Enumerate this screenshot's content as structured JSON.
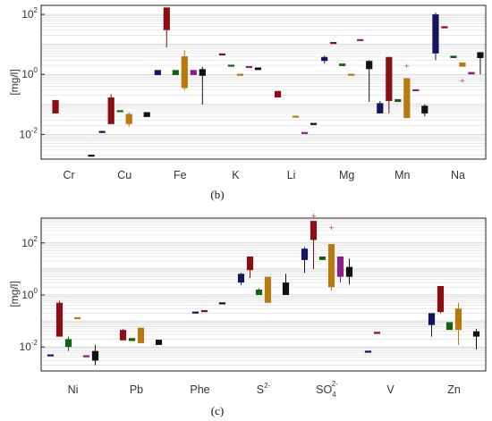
{
  "chart_data": [
    {
      "type": "box",
      "panel_label": "(b)",
      "ylabel": "[mg/l]",
      "yscale": "log",
      "ylim": [
        0.0015,
        200
      ],
      "yticks": [
        {
          "v": 0.01,
          "base": "10",
          "exp": "-2"
        },
        {
          "v": 1,
          "base": "10",
          "exp": "0"
        },
        {
          "v": 100,
          "base": "10",
          "exp": "2"
        }
      ],
      "grid": true,
      "categories": [
        {
          "label": "Cr",
          "sub": "",
          "sup": ""
        },
        {
          "label": "Cu",
          "sub": "",
          "sup": ""
        },
        {
          "label": "Fe",
          "sub": "",
          "sup": ""
        },
        {
          "label": "K",
          "sub": "",
          "sup": ""
        },
        {
          "label": "Li",
          "sub": "",
          "sup": ""
        },
        {
          "label": "Mg",
          "sub": "",
          "sup": ""
        },
        {
          "label": "Mn",
          "sub": "",
          "sup": ""
        },
        {
          "label": "Na",
          "sub": "",
          "sup": ""
        }
      ],
      "boxes": [
        {
          "cat": 0,
          "slot": 1,
          "color": "#8b0f12",
          "q1": 0.05,
          "q3": 0.14,
          "wlo": 0.05,
          "whi": 0.14
        },
        {
          "cat": 0,
          "slot": 5,
          "color": "#111111",
          "q1": 0.0019,
          "q3": 0.0021,
          "wlo": 0.0019,
          "whi": 0.0021
        },
        {
          "cat": 1,
          "slot": 0,
          "color": "#14145f",
          "q1": 0.012,
          "q3": 0.013,
          "wlo": 0.012,
          "whi": 0.013
        },
        {
          "cat": 1,
          "slot": 1,
          "color": "#8b0f12",
          "q1": 0.022,
          "q3": 0.17,
          "wlo": 0.022,
          "whi": 0.22
        },
        {
          "cat": 1,
          "slot": 2,
          "color": "#136213",
          "q1": 0.058,
          "q3": 0.064,
          "wlo": 0.058,
          "whi": 0.064
        },
        {
          "cat": 1,
          "slot": 3,
          "color": "#b8790f",
          "q1": 0.022,
          "q3": 0.048,
          "wlo": 0.018,
          "whi": 0.055
        },
        {
          "cat": 1,
          "slot": 5,
          "color": "#111111",
          "q1": 0.038,
          "q3": 0.055,
          "wlo": 0.038,
          "whi": 0.055
        },
        {
          "cat": 2,
          "slot": 0,
          "color": "#14145f",
          "q1": 0.95,
          "q3": 1.4,
          "wlo": 0.95,
          "whi": 1.4
        },
        {
          "cat": 2,
          "slot": 1,
          "color": "#8b0f12",
          "q1": 30,
          "q3": 170,
          "wlo": 8,
          "whi": 170
        },
        {
          "cat": 2,
          "slot": 2,
          "color": "#136213",
          "q1": 0.95,
          "q3": 1.4,
          "wlo": 0.95,
          "whi": 1.4
        },
        {
          "cat": 2,
          "slot": 3,
          "color": "#b8790f",
          "q1": 0.35,
          "q3": 4.0,
          "wlo": 0.3,
          "whi": 6.5
        },
        {
          "cat": 2,
          "slot": 4,
          "color": "#8a1f8a",
          "q1": 0.95,
          "q3": 1.4,
          "wlo": 0.95,
          "whi": 1.4
        },
        {
          "cat": 2,
          "slot": 5,
          "color": "#111111",
          "q1": 0.9,
          "q3": 1.5,
          "wlo": 0.1,
          "whi": 1.8
        },
        {
          "cat": 3,
          "slot": 1,
          "color": "#8b0f12",
          "q1": 4.5,
          "q3": 5.0,
          "wlo": 4.5,
          "whi": 5.0
        },
        {
          "cat": 3,
          "slot": 2,
          "color": "#136213",
          "q1": 1.9,
          "q3": 2.1,
          "wlo": 1.9,
          "whi": 2.1
        },
        {
          "cat": 3,
          "slot": 3,
          "color": "#b8790f",
          "q1": 0.95,
          "q3": 1.05,
          "wlo": 0.95,
          "whi": 1.05
        },
        {
          "cat": 3,
          "slot": 4,
          "color": "#8a1f8a",
          "q1": 1.7,
          "q3": 1.9,
          "wlo": 1.7,
          "whi": 1.9
        },
        {
          "cat": 3,
          "slot": 5,
          "color": "#111111",
          "q1": 1.4,
          "q3": 1.7,
          "wlo": 1.4,
          "whi": 1.7
        },
        {
          "cat": 4,
          "slot": 1,
          "color": "#8b0f12",
          "q1": 0.17,
          "q3": 0.28,
          "wlo": 0.17,
          "whi": 0.28
        },
        {
          "cat": 4,
          "slot": 3,
          "color": "#b8790f",
          "q1": 0.039,
          "q3": 0.042,
          "wlo": 0.039,
          "whi": 0.042
        },
        {
          "cat": 4,
          "slot": 4,
          "color": "#8a1f8a",
          "q1": 0.011,
          "q3": 0.012,
          "wlo": 0.011,
          "whi": 0.012
        },
        {
          "cat": 4,
          "slot": 5,
          "color": "#111111",
          "q1": 0.022,
          "q3": 0.024,
          "wlo": 0.022,
          "whi": 0.024
        },
        {
          "cat": 5,
          "slot": 0,
          "color": "#14145f",
          "q1": 2.8,
          "q3": 3.8,
          "wlo": 2.3,
          "whi": 4.2
        },
        {
          "cat": 5,
          "slot": 1,
          "color": "#8b0f12",
          "q1": 11,
          "q3": 12,
          "wlo": 11,
          "whi": 12
        },
        {
          "cat": 5,
          "slot": 2,
          "color": "#136213",
          "q1": 1.9,
          "q3": 2.3,
          "wlo": 1.9,
          "whi": 2.3
        },
        {
          "cat": 5,
          "slot": 3,
          "color": "#b8790f",
          "q1": 0.95,
          "q3": 1.05,
          "wlo": 0.95,
          "whi": 1.05
        },
        {
          "cat": 5,
          "slot": 4,
          "color": "#8a1f8a",
          "q1": 13,
          "q3": 15,
          "wlo": 13,
          "whi": 15
        },
        {
          "cat": 5,
          "slot": 5,
          "color": "#111111",
          "q1": 1.5,
          "q3": 2.8,
          "wlo": 0.12,
          "whi": 3.0
        },
        {
          "cat": 6,
          "slot": 0,
          "color": "#14145f",
          "q1": 0.05,
          "q3": 0.11,
          "wlo": 0.05,
          "whi": 0.13
        },
        {
          "cat": 6,
          "slot": 1,
          "color": "#8b0f12",
          "q1": 0.13,
          "q3": 3.8,
          "wlo": 0.05,
          "whi": 3.8
        },
        {
          "cat": 6,
          "slot": 2,
          "color": "#136213",
          "q1": 0.12,
          "q3": 0.15,
          "wlo": 0.12,
          "whi": 0.15
        },
        {
          "cat": 6,
          "slot": 3,
          "color": "#b8790f",
          "q1": 0.035,
          "q3": 0.75,
          "wlo": 0.035,
          "whi": 0.75,
          "out": [
            1.9
          ]
        },
        {
          "cat": 6,
          "slot": 4,
          "color": "#8a1f8a",
          "q1": 0.28,
          "q3": 0.32,
          "wlo": 0.28,
          "whi": 0.32
        },
        {
          "cat": 6,
          "slot": 5,
          "color": "#111111",
          "q1": 0.05,
          "q3": 0.09,
          "wlo": 0.04,
          "whi": 0.1
        },
        {
          "cat": 7,
          "slot": 0,
          "color": "#14145f",
          "q1": 5,
          "q3": 100,
          "wlo": 3,
          "whi": 115
        },
        {
          "cat": 7,
          "slot": 1,
          "color": "#8b0f12",
          "q1": 36,
          "q3": 40,
          "wlo": 36,
          "whi": 40
        },
        {
          "cat": 7,
          "slot": 2,
          "color": "#136213",
          "q1": 3.5,
          "q3": 4.2,
          "wlo": 3.5,
          "whi": 4.2
        },
        {
          "cat": 7,
          "slot": 3,
          "color": "#b8790f",
          "q1": 1.8,
          "q3": 2.5,
          "wlo": 1.8,
          "whi": 2.5,
          "out": [
            0.6
          ]
        },
        {
          "cat": 7,
          "slot": 4,
          "color": "#8a1f8a",
          "q1": 1.0,
          "q3": 1.2,
          "wlo": 1.0,
          "whi": 1.2
        },
        {
          "cat": 7,
          "slot": 5,
          "color": "#111111",
          "q1": 3.5,
          "q3": 5.5,
          "wlo": 1.0,
          "whi": 5.5
        }
      ]
    },
    {
      "type": "box",
      "panel_label": "(c)",
      "ylabel": "[mg/l]",
      "yscale": "log",
      "ylim": [
        0.0012,
        900
      ],
      "yticks": [
        {
          "v": 0.01,
          "base": "10",
          "exp": "-2"
        },
        {
          "v": 1,
          "base": "10",
          "exp": "0"
        },
        {
          "v": 100,
          "base": "10",
          "exp": "2"
        }
      ],
      "grid": true,
      "categories": [
        {
          "label": "Ni",
          "sub": "",
          "sup": ""
        },
        {
          "label": "Pb",
          "sub": "",
          "sup": ""
        },
        {
          "label": "Phe",
          "sub": "",
          "sup": ""
        },
        {
          "label": "S",
          "sub": "",
          "sup": "2-"
        },
        {
          "label": "SO",
          "sub": "4",
          "sup": "2-"
        },
        {
          "label": "V",
          "sub": "",
          "sup": ""
        },
        {
          "label": "Zn",
          "sub": "",
          "sup": ""
        }
      ],
      "boxes": [
        {
          "cat": 0,
          "slot": 0,
          "color": "#14145f",
          "q1": 0.0047,
          "q3": 0.0052,
          "wlo": 0.0047,
          "whi": 0.0052
        },
        {
          "cat": 0,
          "slot": 1,
          "color": "#8b0f12",
          "q1": 0.025,
          "q3": 0.5,
          "wlo": 0.025,
          "whi": 0.6
        },
        {
          "cat": 0,
          "slot": 2,
          "color": "#136213",
          "q1": 0.01,
          "q3": 0.02,
          "wlo": 0.007,
          "whi": 0.025
        },
        {
          "cat": 0,
          "slot": 3,
          "color": "#b8790f",
          "q1": 0.12,
          "q3": 0.14,
          "wlo": 0.12,
          "whi": 0.14
        },
        {
          "cat": 0,
          "slot": 4,
          "color": "#8a1f8a",
          "q1": 0.0043,
          "q3": 0.0048,
          "wlo": 0.0043,
          "whi": 0.0048
        },
        {
          "cat": 0,
          "slot": 5,
          "color": "#111111",
          "q1": 0.003,
          "q3": 0.007,
          "wlo": 0.002,
          "whi": 0.012
        },
        {
          "cat": 1,
          "slot": 1,
          "color": "#8b0f12",
          "q1": 0.018,
          "q3": 0.045,
          "wlo": 0.018,
          "whi": 0.05
        },
        {
          "cat": 1,
          "slot": 2,
          "color": "#136213",
          "q1": 0.017,
          "q3": 0.022,
          "wlo": 0.017,
          "whi": 0.022
        },
        {
          "cat": 1,
          "slot": 3,
          "color": "#b8790f",
          "q1": 0.014,
          "q3": 0.055,
          "wlo": 0.014,
          "whi": 0.055
        },
        {
          "cat": 1,
          "slot": 5,
          "color": "#111111",
          "q1": 0.012,
          "q3": 0.019,
          "wlo": 0.012,
          "whi": 0.019
        },
        {
          "cat": 2,
          "slot": 2,
          "color": "#14145f",
          "q1": 0.2,
          "q3": 0.23,
          "wlo": 0.2,
          "whi": 0.23
        },
        {
          "cat": 2,
          "slot": 3,
          "color": "#8b0f12",
          "q1": 0.23,
          "q3": 0.26,
          "wlo": 0.23,
          "whi": 0.26
        },
        {
          "cat": 2,
          "slot": 5,
          "color": "#111111",
          "q1": 0.46,
          "q3": 0.52,
          "wlo": 0.46,
          "whi": 0.52
        },
        {
          "cat": 3,
          "slot": 0,
          "color": "#14145f",
          "q1": 3,
          "q3": 6.5,
          "wlo": 2.4,
          "whi": 7
        },
        {
          "cat": 3,
          "slot": 1,
          "color": "#8b0f12",
          "q1": 9,
          "q3": 30,
          "wlo": 4.5,
          "whi": 30
        },
        {
          "cat": 3,
          "slot": 2,
          "color": "#136213",
          "q1": 1,
          "q3": 1.6,
          "wlo": 1,
          "whi": 1.8
        },
        {
          "cat": 3,
          "slot": 3,
          "color": "#b8790f",
          "q1": 0.5,
          "q3": 5,
          "wlo": 0.5,
          "whi": 5
        },
        {
          "cat": 3,
          "slot": 5,
          "color": "#111111",
          "q1": 1,
          "q3": 3,
          "wlo": 1,
          "whi": 6.5
        },
        {
          "cat": 4,
          "slot": 0,
          "color": "#14145f",
          "q1": 22,
          "q3": 60,
          "wlo": 7,
          "whi": 70
        },
        {
          "cat": 4,
          "slot": 1,
          "color": "#8b0f12",
          "q1": 130,
          "q3": 700,
          "wlo": 10,
          "whi": 700,
          "out": [
            1100
          ]
        },
        {
          "cat": 4,
          "slot": 2,
          "color": "#136213",
          "q1": 22,
          "q3": 30,
          "wlo": 22,
          "whi": 30
        },
        {
          "cat": 4,
          "slot": 3,
          "color": "#b8790f",
          "q1": 2,
          "q3": 90,
          "wlo": 1.5,
          "whi": 90,
          "out": [
            380
          ]
        },
        {
          "cat": 4,
          "slot": 4,
          "color": "#8a1f8a",
          "q1": 5,
          "q3": 30,
          "wlo": 3,
          "whi": 30
        },
        {
          "cat": 4,
          "slot": 5,
          "color": "#111111",
          "q1": 5,
          "q3": 12,
          "wlo": 2.5,
          "whi": 25
        },
        {
          "cat": 5,
          "slot": 0,
          "color": "#14145f",
          "q1": 0.0065,
          "q3": 0.0072,
          "wlo": 0.0065,
          "whi": 0.0072
        },
        {
          "cat": 5,
          "slot": 1,
          "color": "#8b0f12",
          "q1": 0.035,
          "q3": 0.038,
          "wlo": 0.035,
          "whi": 0.038
        },
        {
          "cat": 6,
          "slot": 0,
          "color": "#14145f",
          "q1": 0.07,
          "q3": 0.2,
          "wlo": 0.025,
          "whi": 0.2
        },
        {
          "cat": 6,
          "slot": 1,
          "color": "#8b0f12",
          "q1": 0.22,
          "q3": 2.2,
          "wlo": 0.2,
          "whi": 2.2
        },
        {
          "cat": 6,
          "slot": 2,
          "color": "#136213",
          "q1": 0.045,
          "q3": 0.09,
          "wlo": 0.045,
          "whi": 0.09
        },
        {
          "cat": 6,
          "slot": 3,
          "color": "#b8790f",
          "q1": 0.045,
          "q3": 0.3,
          "wlo": 0.012,
          "whi": 0.5
        },
        {
          "cat": 6,
          "slot": 5,
          "color": "#111111",
          "q1": 0.025,
          "q3": 0.04,
          "wlo": 0.008,
          "whi": 0.05
        }
      ]
    }
  ]
}
